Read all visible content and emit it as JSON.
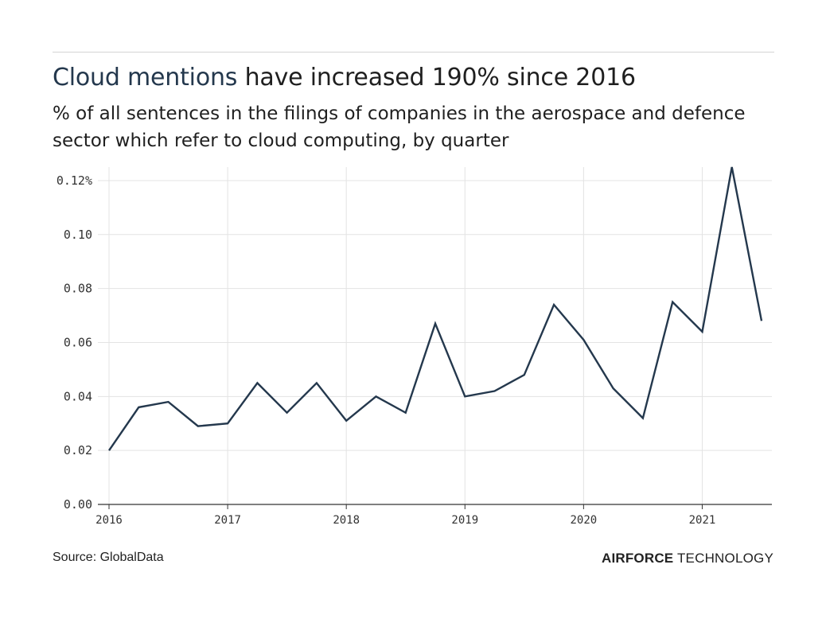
{
  "header": {
    "title_highlight": "Cloud mentions",
    "title_rest": " have increased 190% since 2016",
    "subtitle": "% of all sentences in the filings of companies in the aerospace and defence sector which refer to cloud computing, by quarter"
  },
  "footer": {
    "source": "Source: GlobalData",
    "brand_bold": "AIRFORCE",
    "brand_light": " TECHNOLOGY"
  },
  "colors": {
    "line": "#24384d",
    "grid": "#e3e3e3",
    "axis": "#333333"
  },
  "chart_data": {
    "type": "line",
    "x": [
      "2016Q1",
      "2016Q2",
      "2016Q3",
      "2016Q4",
      "2017Q1",
      "2017Q2",
      "2017Q3",
      "2017Q4",
      "2018Q1",
      "2018Q2",
      "2018Q3",
      "2018Q4",
      "2019Q1",
      "2019Q2",
      "2019Q3",
      "2019Q4",
      "2020Q1",
      "2020Q2",
      "2020Q3",
      "2020Q4",
      "2021Q1",
      "2021Q2",
      "2021Q3"
    ],
    "values": [
      0.02,
      0.036,
      0.038,
      0.029,
      0.03,
      0.045,
      0.034,
      0.045,
      0.031,
      0.04,
      0.034,
      0.067,
      0.04,
      0.042,
      0.048,
      0.074,
      0.061,
      0.043,
      0.032,
      0.075,
      0.064,
      0.125,
      0.068
    ],
    "ylim": [
      0,
      0.125
    ],
    "yticks": [
      {
        "value": 0,
        "label": "0.00"
      },
      {
        "value": 0.02,
        "label": "0.02"
      },
      {
        "value": 0.04,
        "label": "0.04"
      },
      {
        "value": 0.06,
        "label": "0.06"
      },
      {
        "value": 0.08,
        "label": "0.08"
      },
      {
        "value": 0.1,
        "label": "0.10"
      },
      {
        "value": 0.12,
        "label": "0.12%"
      }
    ],
    "xticks": [
      {
        "index": 0,
        "label": "2016"
      },
      {
        "index": 4,
        "label": "2017"
      },
      {
        "index": 8,
        "label": "2018"
      },
      {
        "index": 12,
        "label": "2019"
      },
      {
        "index": 16,
        "label": "2020"
      },
      {
        "index": 20,
        "label": "2021"
      }
    ],
    "grid": true
  }
}
